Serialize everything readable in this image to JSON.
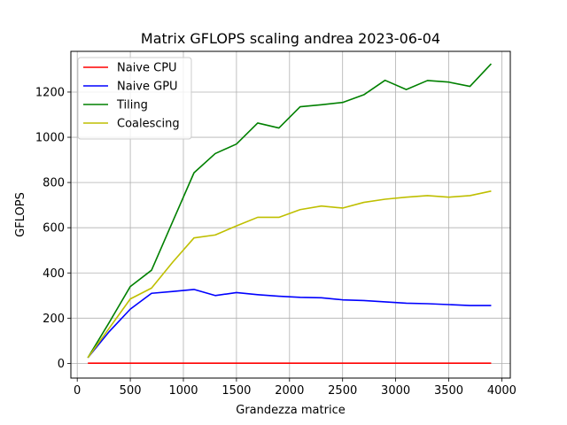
{
  "chart_data": {
    "type": "line",
    "title": "Matrix GFLOPS scaling andrea 2023-06-04",
    "xlabel": "Grandezza matrice",
    "ylabel": "GFLOPS",
    "xlim": [
      -60,
      4080
    ],
    "ylim": [
      -65,
      1380
    ],
    "xticks": [
      0,
      500,
      1000,
      1500,
      2000,
      2500,
      3000,
      3500,
      4000
    ],
    "yticks": [
      0,
      200,
      400,
      600,
      800,
      1000,
      1200
    ],
    "grid": true,
    "legend_position": "top-left",
    "x": [
      100,
      300,
      500,
      700,
      900,
      1100,
      1300,
      1500,
      1700,
      1900,
      2100,
      2300,
      2500,
      2700,
      2900,
      3100,
      3300,
      3500,
      3700,
      3900
    ],
    "series": [
      {
        "name": "Naive CPU",
        "color": "#ff0000",
        "values": [
          1,
          1,
          1,
          1,
          1,
          1,
          1,
          1,
          1,
          1,
          1,
          1,
          1,
          1,
          1,
          1,
          1,
          1,
          1,
          1
        ]
      },
      {
        "name": "Naive GPU",
        "color": "#0000ff",
        "values": [
          25,
          140,
          240,
          310,
          318,
          327,
          300,
          313,
          304,
          297,
          292,
          290,
          281,
          278,
          272,
          266,
          264,
          260,
          256,
          256
        ]
      },
      {
        "name": "Tiling",
        "color": "#008000",
        "values": [
          25,
          180,
          340,
          412,
          628,
          843,
          928,
          970,
          1063,
          1041,
          1135,
          1144,
          1154,
          1188,
          1252,
          1211,
          1251,
          1244,
          1225,
          1325
        ]
      },
      {
        "name": "Coalescing",
        "color": "#bfbf00",
        "values": [
          25,
          155,
          285,
          333,
          448,
          555,
          568,
          608,
          646,
          646,
          680,
          696,
          687,
          712,
          726,
          735,
          742,
          735,
          742,
          762
        ]
      }
    ]
  }
}
